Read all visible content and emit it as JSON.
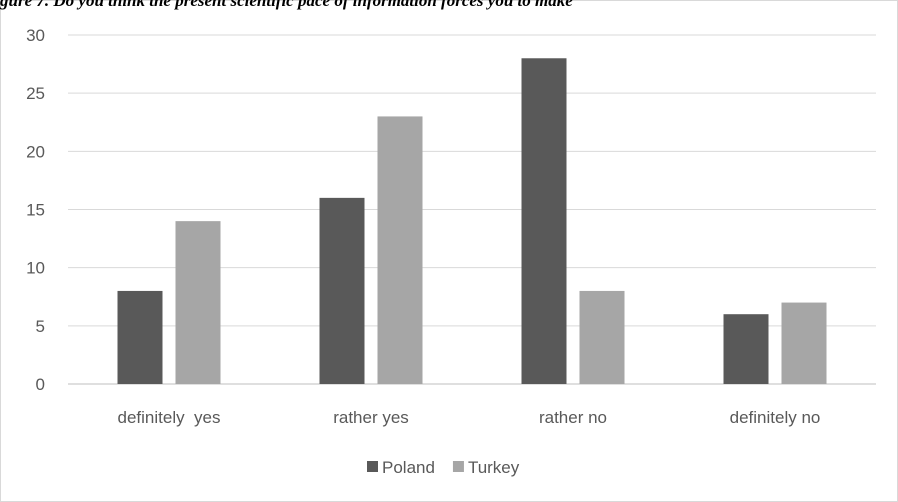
{
  "caption": "gure 7. Do you think the present scientific pace of information forces you to make",
  "chart_data": {
    "type": "bar",
    "title": "",
    "xlabel": "",
    "ylabel": "",
    "categories": [
      "definitely  yes",
      "rather yes",
      "rather no",
      "definitely no"
    ],
    "series": [
      {
        "name": "Poland",
        "values": [
          8,
          16,
          28,
          6
        ],
        "color": "#595959"
      },
      {
        "name": "Turkey",
        "values": [
          14,
          23,
          8,
          7
        ],
        "color": "#a6a6a6"
      }
    ],
    "ylim": [
      0,
      30
    ],
    "yticks": [
      0,
      5,
      10,
      15,
      20,
      25,
      30
    ],
    "grid": true,
    "legend_position": "bottom"
  }
}
